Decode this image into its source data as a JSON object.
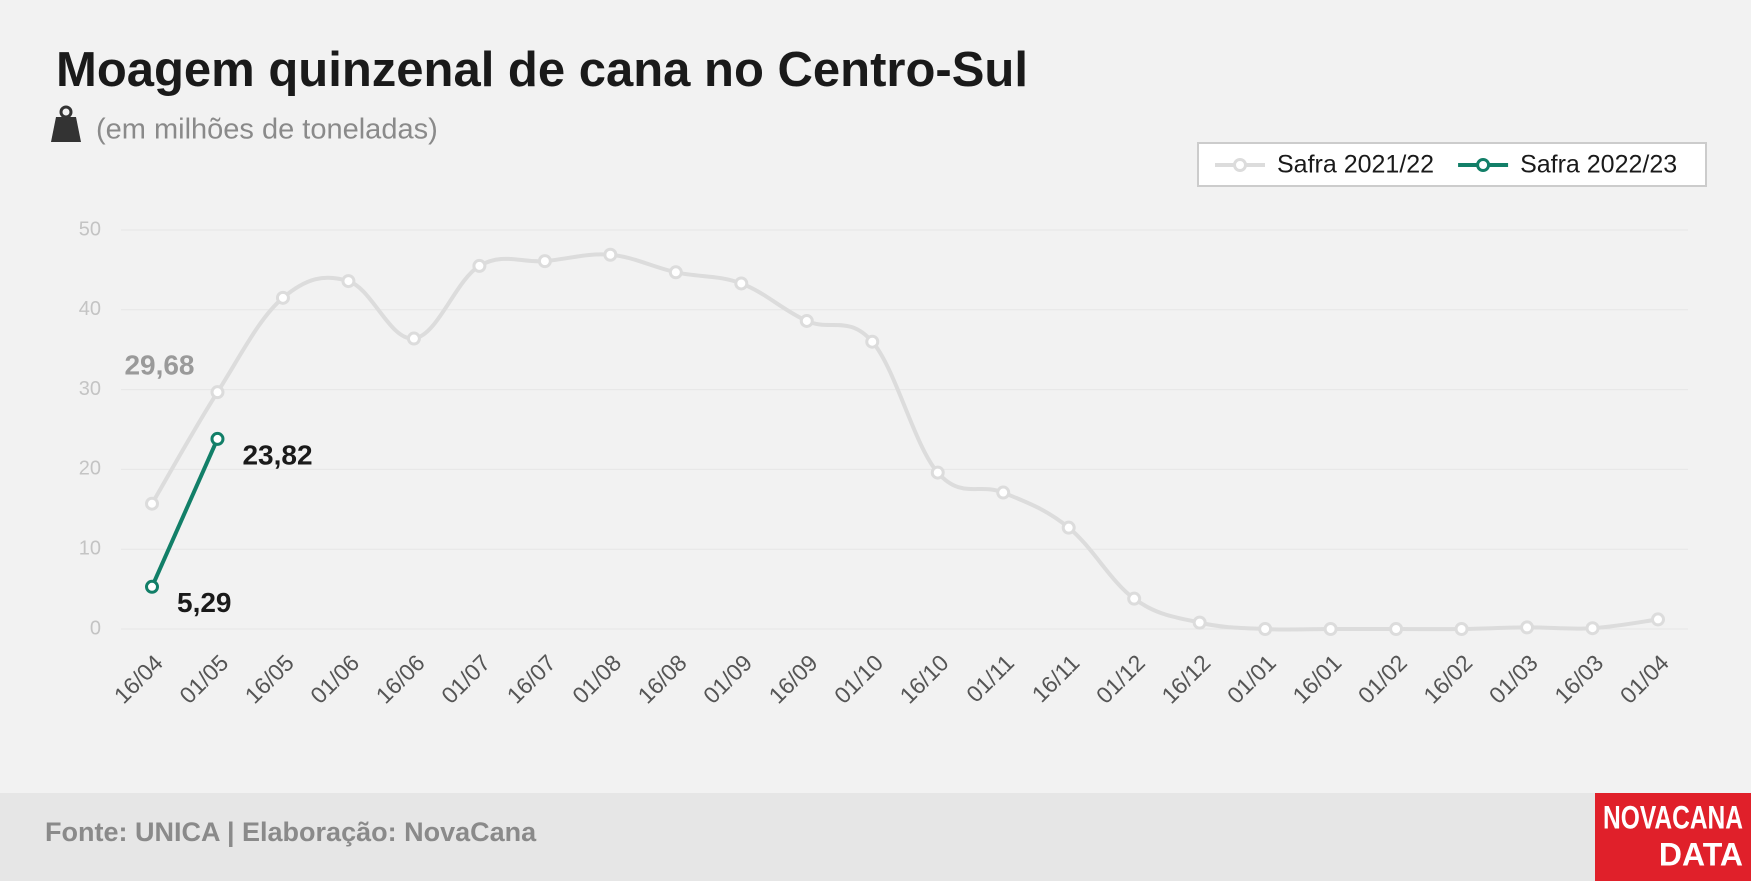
{
  "chart_data": {
    "type": "line",
    "title": "Moagem quinzenal de cana no Centro-Sul",
    "subtitle": "(em milhões de toneladas)",
    "categories": [
      "16/04",
      "01/05",
      "16/05",
      "01/06",
      "16/06",
      "01/07",
      "16/07",
      "01/08",
      "16/08",
      "01/09",
      "16/09",
      "01/10",
      "16/10",
      "01/11",
      "16/11",
      "01/12",
      "16/12",
      "01/01",
      "16/01",
      "01/02",
      "16/02",
      "01/03",
      "16/03",
      "01/04"
    ],
    "series": [
      {
        "name": "Safra 2021/22",
        "color": "#dcdcdc",
        "values": [
          15.7,
          29.68,
          41.5,
          43.6,
          36.4,
          45.5,
          46.1,
          46.9,
          44.7,
          43.3,
          38.6,
          36.0,
          19.6,
          17.1,
          12.7,
          3.8,
          0.8,
          0.0,
          0.0,
          0.0,
          0.0,
          0.2,
          0.1,
          1.2
        ],
        "value_labels": [
          null,
          "29,68",
          null,
          null,
          null,
          null,
          null,
          null,
          null,
          null,
          null,
          null,
          null,
          null,
          null,
          null,
          null,
          null,
          null,
          null,
          null,
          null,
          null,
          null
        ]
      },
      {
        "name": "Safra 2022/23",
        "color": "#127f68",
        "values": [
          5.29,
          23.82,
          null,
          null,
          null,
          null,
          null,
          null,
          null,
          null,
          null,
          null,
          null,
          null,
          null,
          null,
          null,
          null,
          null,
          null,
          null,
          null,
          null,
          null
        ],
        "value_labels": [
          "5,29",
          "23,82",
          null,
          null,
          null,
          null,
          null,
          null,
          null,
          null,
          null,
          null,
          null,
          null,
          null,
          null,
          null,
          null,
          null,
          null,
          null,
          null,
          null,
          null
        ]
      }
    ],
    "ylim": [
      0,
      50
    ],
    "yticks": [
      0,
      10,
      20,
      30,
      40,
      50
    ],
    "grid": true,
    "legend": "top-right",
    "source": "Fonte: UNICA | Elaboração: NovaCana",
    "logo": {
      "line1": "NOVACANA",
      "line2": "DATA"
    }
  }
}
